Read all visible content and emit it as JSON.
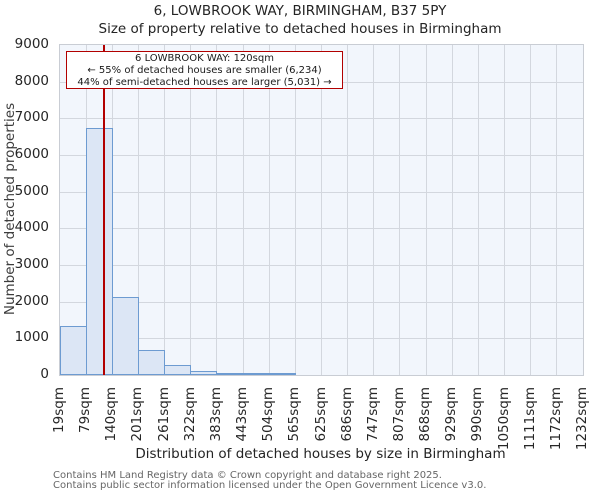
{
  "header": {
    "title": "6, LOWBROOK WAY, BIRMINGHAM, B37 5PY",
    "subtitle": "Size of property relative to detached houses in Birmingham"
  },
  "annotation": {
    "line1": "6 LOWBROOK WAY: 120sqm",
    "line2": "← 55% of detached houses are smaller (6,234)",
    "line3": "44% of semi-detached houses are larger (5,031) →"
  },
  "footer": {
    "line1": "Contains HM Land Registry data © Crown copyright and database right 2025.",
    "line2": "Contains public sector information licensed under the Open Government Licence v3.0."
  },
  "chart_data": {
    "type": "bar",
    "title": "6, LOWBROOK WAY, BIRMINGHAM, B37 5PY",
    "subtitle": "Size of property relative to detached houses in Birmingham",
    "xlabel": "Distribution of detached houses by size in Birmingham",
    "ylabel": "Number of detached properties",
    "x_tick_labels": [
      "19sqm",
      "79sqm",
      "140sqm",
      "201sqm",
      "261sqm",
      "322sqm",
      "383sqm",
      "443sqm",
      "504sqm",
      "565sqm",
      "625sqm",
      "686sqm",
      "747sqm",
      "807sqm",
      "868sqm",
      "929sqm",
      "990sqm",
      "1050sqm",
      "1111sqm",
      "1172sqm",
      "1232sqm"
    ],
    "values": [
      1340,
      6750,
      2130,
      670,
      270,
      110,
      45,
      30,
      20,
      0,
      0,
      0,
      0,
      0,
      0,
      0,
      0,
      0,
      0,
      0
    ],
    "y_ticks": [
      0,
      1000,
      2000,
      3000,
      4000,
      5000,
      6000,
      7000,
      8000,
      9000
    ],
    "ylim": [
      0,
      9000
    ],
    "xlim_sqm": [
      19,
      1232
    ],
    "marker": {
      "label": "6 LOWBROOK WAY",
      "value_sqm": 120
    },
    "grid": true,
    "legend": false,
    "colors": {
      "bar_fill": "#dce6f5",
      "bar_edge": "#6d9bd1",
      "marker_red": "#b20000",
      "plot_bg": "#f2f6fc",
      "grid_line": "#d3d7de"
    }
  }
}
